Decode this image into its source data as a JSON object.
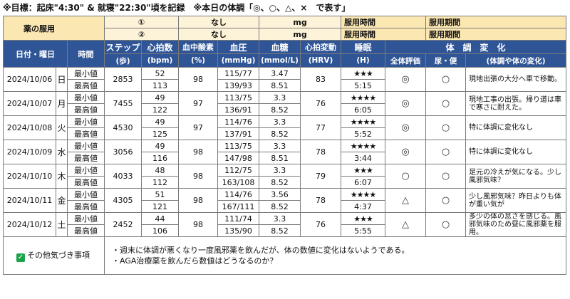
{
  "goal_text": "※目標：起床\"4:30\" & 就寝\"22:30\"頃を記録　※本日の体調「◎、○、△、×　で表す」",
  "medication": {
    "label": "薬の服用",
    "rows": [
      {
        "num": "①",
        "name": "なし",
        "unit": "mg",
        "time_label": "服用時間",
        "period_label": "服用期間"
      },
      {
        "num": "②",
        "name": "なし",
        "unit": "mg",
        "time_label": "服用時間",
        "period_label": "服用期間"
      }
    ]
  },
  "headers": {
    "date": "日付・曜日",
    "time": "時間",
    "steps": "ステップ",
    "steps_unit": "(歩)",
    "hr": "心拍数",
    "hr_unit": "(bpm)",
    "spo2": "血中酸素",
    "spo2_unit": "(%)",
    "bp": "血圧",
    "bp_unit": "(mmHg)",
    "sugar": "血糖",
    "sugar_unit": "(mmol/L)",
    "hrv": "心拍変動",
    "hrv_unit": "(HRV)",
    "sleep": "睡眠",
    "sleep_unit": "(H)",
    "change": "体　調　変　化",
    "overall": "全体評価",
    "toilet": "尿・便",
    "change_sub": "(体調や体の変化)"
  },
  "labels": {
    "min": "最小値",
    "max": "最高値"
  },
  "days": [
    {
      "date": "2024/10/06",
      "wd": "日",
      "steps": "2853",
      "hr_min": "52",
      "hr_max": "113",
      "spo2": "98",
      "bp_min": "115/77",
      "bp_max": "139/93",
      "sugar_min": "3.47",
      "sugar_max": "8.51",
      "hrv": "83",
      "stars": "★★★",
      "sleep": "5:15",
      "overall": "◎",
      "toilet": "○",
      "note": "現地出張の大分へ車で移動。"
    },
    {
      "date": "2024/10/07",
      "wd": "月",
      "steps": "7455",
      "hr_min": "49",
      "hr_max": "122",
      "spo2": "97",
      "bp_min": "113/75",
      "bp_max": "136/91",
      "sugar_min": "3.3",
      "sugar_max": "8.52",
      "hrv": "76",
      "stars": "★★★★",
      "sleep": "6:05",
      "overall": "◎",
      "toilet": "○",
      "note": "現地工事の出張。帰り道は車で寒さに耐えた。"
    },
    {
      "date": "2024/10/08",
      "wd": "火",
      "steps": "4530",
      "hr_min": "49",
      "hr_max": "125",
      "spo2": "97",
      "bp_min": "114/76",
      "bp_max": "137/91",
      "sugar_min": "3.3",
      "sugar_max": "8.52",
      "hrv": "77",
      "stars": "★★★★",
      "sleep": "5:52",
      "overall": "◎",
      "toilet": "○",
      "note": "特に体調に変化なし"
    },
    {
      "date": "2024/10/09",
      "wd": "水",
      "steps": "3056",
      "hr_min": "49",
      "hr_max": "116",
      "spo2": "98",
      "bp_min": "113/75",
      "bp_max": "147/98",
      "sugar_min": "3.3",
      "sugar_max": "8.51",
      "hrv": "78",
      "stars": "★★★★",
      "sleep": "3:44",
      "overall": "◎",
      "toilet": "○",
      "note": "特に体調に変化なし"
    },
    {
      "date": "2024/10/10",
      "wd": "木",
      "steps": "4033",
      "hr_min": "48",
      "hr_max": "112",
      "spo2": "98",
      "bp_min": "112/75",
      "bp_max": "163/108",
      "sugar_min": "3.3",
      "sugar_max": "8.52",
      "hrv": "79",
      "stars": "★★★",
      "sleep": "6:07",
      "overall": "○",
      "toilet": "○",
      "note": "足元の冷えが気になる。少し風邪気味？"
    },
    {
      "date": "2024/10/11",
      "wd": "金",
      "steps": "4305",
      "hr_min": "51",
      "hr_max": "121",
      "spo2": "98",
      "bp_min": "114/76",
      "bp_max": "167/111",
      "sugar_min": "3.56",
      "sugar_max": "8.52",
      "hrv": "78",
      "stars": "★★★★",
      "sleep": "4:37",
      "overall": "△",
      "toilet": "○",
      "note": "少し風邪気味？昨日よりも体が重い気が"
    },
    {
      "date": "2024/10/12",
      "wd": "土",
      "steps": "2452",
      "hr_min": "44",
      "hr_max": "106",
      "spo2": "98",
      "bp_min": "111/74",
      "bp_max": "135/90",
      "sugar_min": "3.3",
      "sugar_max": "8.52",
      "hrv": "76",
      "stars": "★★★",
      "sleep": "5:55",
      "overall": "△",
      "toilet": "○",
      "note": "多少の体の怠さを感じる。風邪気味のため昼に風邪薬を服用。"
    }
  ],
  "notes": {
    "label": "その他気づき事項",
    "lines": [
      "・週末に体調が悪くなり一度風邪薬を飲んだが、体の数値に変化はないようである。",
      "・AGA治療薬を飲んだら数値はどうなるのか？"
    ]
  }
}
